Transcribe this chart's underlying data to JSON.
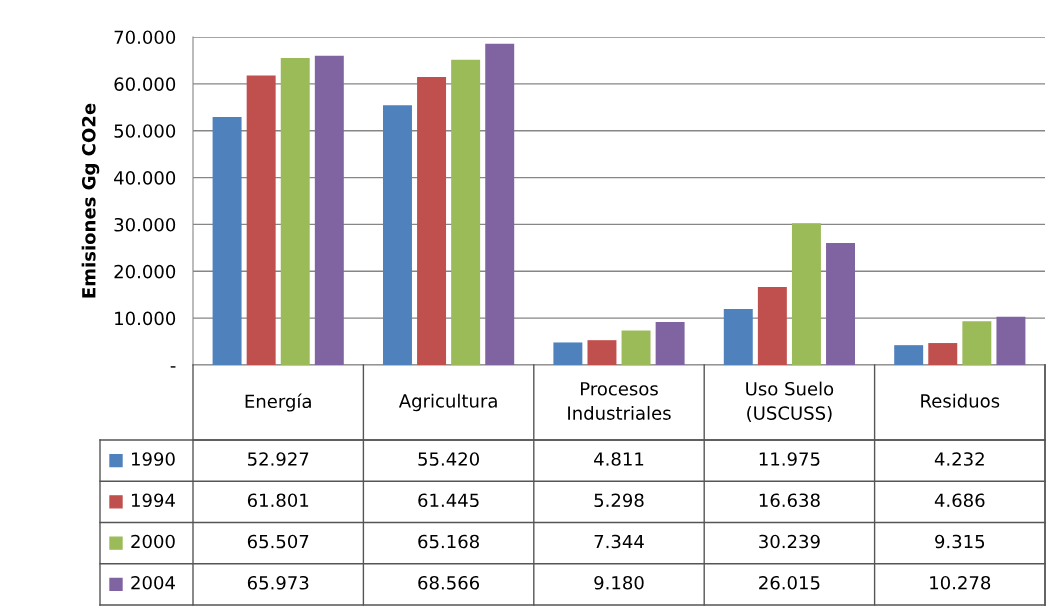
{
  "chart_data": {
    "type": "bar",
    "ylabel": "Emisiones Gg CO2e",
    "categories": [
      "Energía",
      "Agricultura",
      "Procesos\nIndustriales",
      "Uso Suelo\n(USCUSS)",
      "Residuos"
    ],
    "series": [
      {
        "name": "1990",
        "color": "#4f81bd",
        "values": [
          52927,
          55420,
          4811,
          11975,
          4232
        ],
        "value_labels": [
          "52.927",
          "55.420",
          "4.811",
          "11.975",
          "4.232"
        ]
      },
      {
        "name": "1994",
        "color": "#c0504d",
        "values": [
          61801,
          61445,
          5298,
          16638,
          4686
        ],
        "value_labels": [
          "61.801",
          "61.445",
          "5.298",
          "16.638",
          "4.686"
        ]
      },
      {
        "name": "2000",
        "color": "#9bbb59",
        "values": [
          65507,
          65168,
          7344,
          30239,
          9315
        ],
        "value_labels": [
          "65.507",
          "65.168",
          "7.344",
          "30.239",
          "9.315"
        ]
      },
      {
        "name": "2004",
        "color": "#8064a2",
        "values": [
          65973,
          68566,
          9180,
          26015,
          10278
        ],
        "value_labels": [
          "65.973",
          "68.566",
          "9.180",
          "26.015",
          "10.278"
        ]
      }
    ],
    "ylim": [
      0,
      70000
    ],
    "yticks": [
      {
        "value": 0,
        "label": "-"
      },
      {
        "value": 10000,
        "label": "10.000"
      },
      {
        "value": 20000,
        "label": "20.000"
      },
      {
        "value": 30000,
        "label": "30.000"
      },
      {
        "value": 40000,
        "label": "40.000"
      },
      {
        "value": 50000,
        "label": "50.000"
      },
      {
        "value": 60000,
        "label": "60.000"
      },
      {
        "value": 70000,
        "label": "70.000"
      }
    ],
    "grid": "y",
    "legend": "bottom",
    "tick_labels": "y"
  }
}
